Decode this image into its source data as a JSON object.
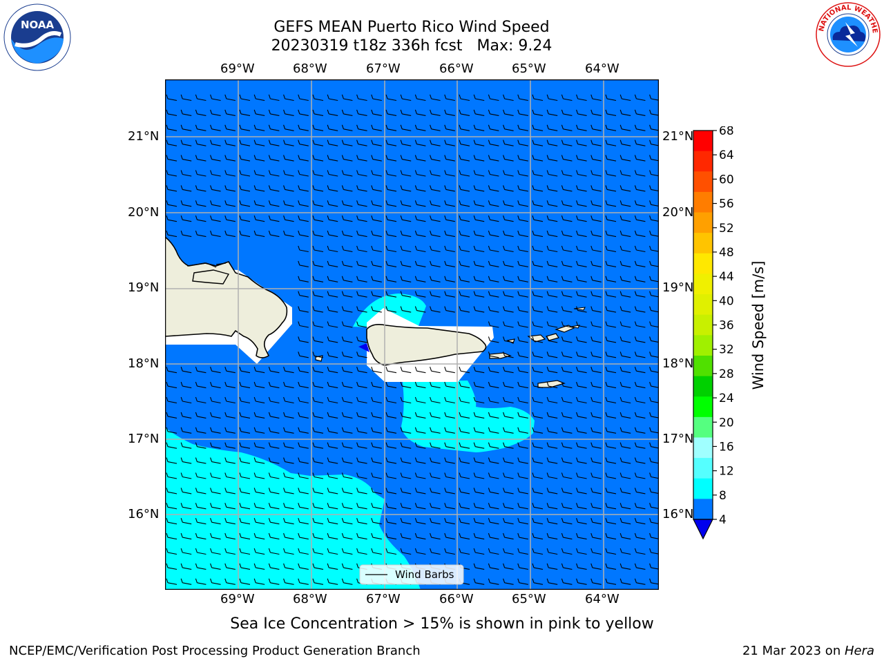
{
  "title": {
    "line1": "GEFS MEAN Puerto Rico Wind Speed",
    "run": "20230319 t18z 336h fcst",
    "max": "Max: 9.24"
  },
  "logos": {
    "left": {
      "name": "noaa-logo",
      "text": "NOAA"
    },
    "right": {
      "name": "nws-logo",
      "text": "NATIONAL WEATHER SERVICE"
    }
  },
  "map": {
    "lon_labels": [
      "69°W",
      "68°W",
      "67°W",
      "66°W",
      "65°W",
      "64°W"
    ],
    "lat_labels": [
      "21°N",
      "20°N",
      "19°N",
      "18°N",
      "17°N",
      "16°N"
    ],
    "extent": {
      "lon_min": -70.0,
      "lon_max": -63.25,
      "lat_min": 15.0,
      "lat_max": 21.75
    },
    "legend": "Wind Barbs"
  },
  "colorbar": {
    "label": "Wind Speed [m/s]",
    "ticks": [
      "68",
      "64",
      "60",
      "56",
      "52",
      "48",
      "44",
      "40",
      "36",
      "32",
      "28",
      "24",
      "20",
      "16",
      "12",
      "8",
      "4"
    ],
    "colors": [
      "#ff0000",
      "#ff2800",
      "#ff5000",
      "#ff7d00",
      "#ffa000",
      "#ffc400",
      "#ffe800",
      "#f0f000",
      "#e0f000",
      "#c8f000",
      "#a0f000",
      "#50e000",
      "#00d000",
      "#00ff00",
      "#55ff80",
      "#a0ffff",
      "#55ffff",
      "#00ffff",
      "#0077ff"
    ],
    "under_color": "#0000ee"
  },
  "note": "Sea Ice Concentration > 15% is shown in pink to yellow",
  "footer": {
    "left": "NCEP/EMC/Verification Post Processing Product Generation Branch",
    "date": "21 Mar 2023 on ",
    "machine": "Hera"
  }
}
